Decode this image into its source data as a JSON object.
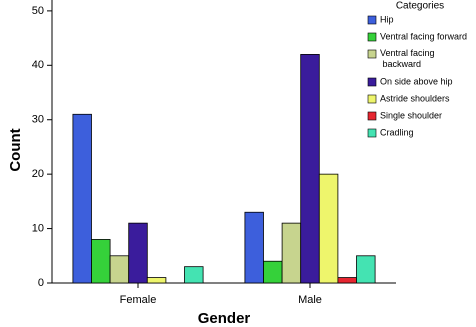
{
  "chart_data": {
    "type": "bar",
    "x_label": "Gender",
    "y_label": "Count",
    "legend_title": "Categories",
    "categories": [
      "Female",
      "Male"
    ],
    "series": [
      {
        "name": "Hip",
        "color": "#3d5fdc",
        "values": [
          31,
          13
        ]
      },
      {
        "name": "Ventral facing forward",
        "color": "#35d13a",
        "values": [
          8,
          4
        ]
      },
      {
        "name": "Ventral facing backward",
        "color": "#c7d48e",
        "values": [
          5,
          11
        ]
      },
      {
        "name": "On side above hip",
        "color": "#3a1c9c",
        "values": [
          11,
          42
        ]
      },
      {
        "name": "Astride shoulders",
        "color": "#eef56c",
        "values": [
          1,
          20
        ]
      },
      {
        "name": "Single shoulder",
        "color": "#e62630",
        "values": [
          0,
          1
        ]
      },
      {
        "name": "Cradling",
        "color": "#44e3b2",
        "values": [
          3,
          5
        ]
      }
    ],
    "ylim": [
      0,
      52
    ],
    "yticks": [
      0,
      10,
      20,
      30,
      40,
      50
    ],
    "legend": "top-right"
  }
}
